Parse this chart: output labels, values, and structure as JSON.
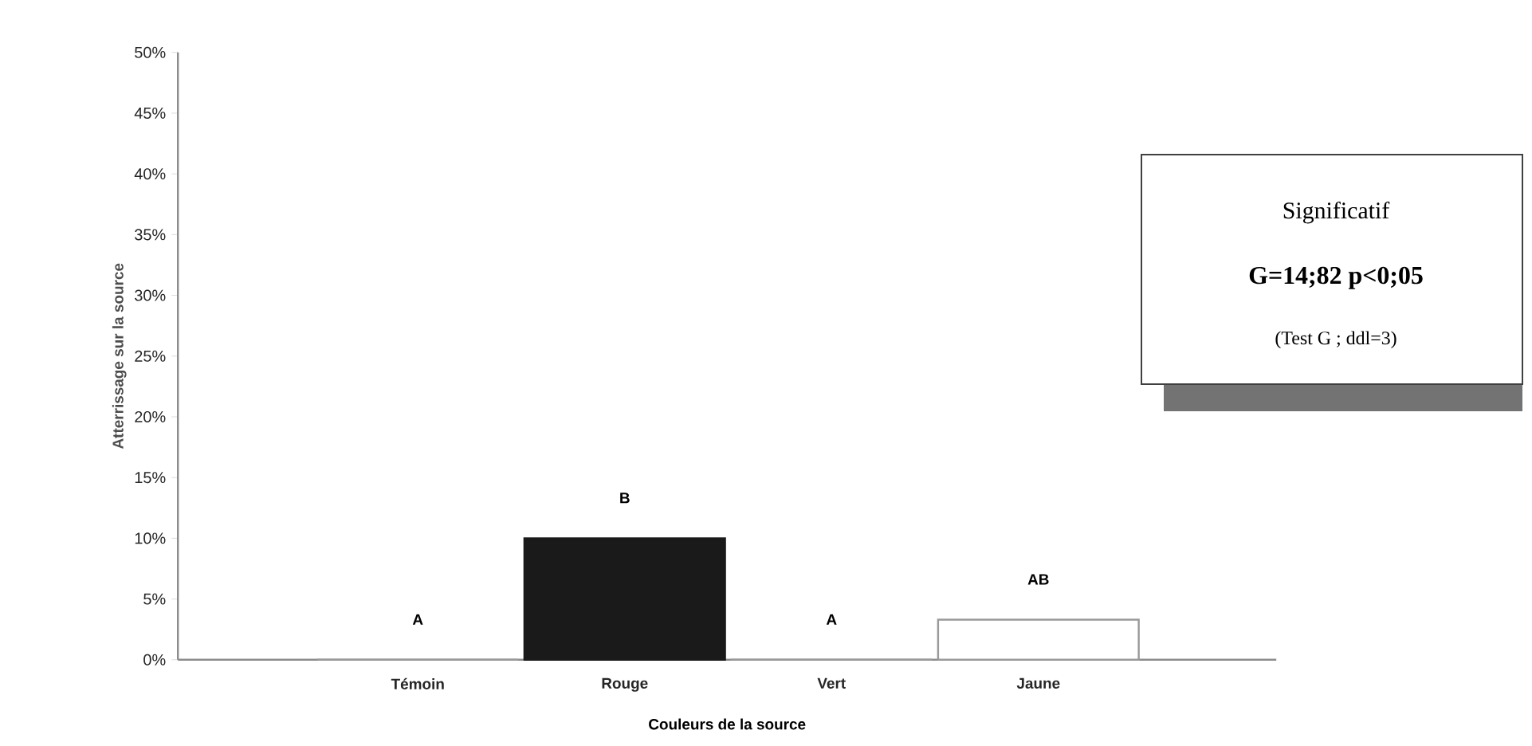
{
  "chart_data": {
    "type": "bar",
    "categories": [
      "Témoin",
      "Rouge",
      "Vert",
      "Jaune"
    ],
    "values": [
      0,
      10,
      0,
      3.3
    ],
    "colors": [
      "#ffffff",
      "#1a1a1a",
      "#ffffff",
      "#ffffff"
    ],
    "xlabel": "Couleurs de la source",
    "ylabel": "Atterrissage sur la source",
    "ylim": [
      0,
      50
    ],
    "yticks": [
      {
        "value": 0,
        "label": "0%"
      },
      {
        "value": 5,
        "label": "5%"
      },
      {
        "value": 10,
        "label": "10%"
      },
      {
        "value": 15,
        "label": "15%"
      },
      {
        "value": 20,
        "label": "20%"
      },
      {
        "value": 25,
        "label": "25%"
      },
      {
        "value": 30,
        "label": "30%"
      },
      {
        "value": 35,
        "label": "35%"
      },
      {
        "value": 40,
        "label": "40%"
      },
      {
        "value": 45,
        "label": "45%"
      },
      {
        "value": 50,
        "label": "50%"
      }
    ],
    "grid": false,
    "annotations": [
      {
        "text": "A",
        "x": "Témoin",
        "y": 0
      },
      {
        "text": "B",
        "x": "Rouge",
        "y": 10
      },
      {
        "text": "A",
        "x": "Vert",
        "y": 0
      },
      {
        "text": "AB",
        "x": "Jaune",
        "y": 3.3
      },
      "Significatif",
      "G=14;82  p<0;05",
      "(Test G ; ddl=3)"
    ]
  }
}
